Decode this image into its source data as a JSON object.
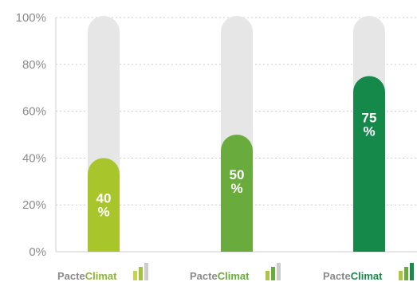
{
  "chart_data": {
    "type": "bar",
    "categories": [
      "PacteClimat",
      "PacteClimat",
      "PacteClimat"
    ],
    "values": [
      40,
      50,
      75
    ],
    "value_labels": [
      [
        "40",
        "%"
      ],
      [
        "50",
        "%"
      ],
      [
        "75",
        "%"
      ]
    ],
    "yticks": [
      "0%",
      "20%",
      "40%",
      "60%",
      "80%",
      "100%"
    ],
    "ylim": [
      0,
      100
    ],
    "grid": true,
    "bar_colors": [
      "#a8c62c",
      "#6aab3e",
      "#14894a"
    ],
    "track_color": "#e6e6e6",
    "grid_color": "#cccccc"
  },
  "logos": [
    {
      "part1": "Pacte",
      "part2": "Climat",
      "part2_color": "#8cb43a",
      "icon": "bar-chart-icon",
      "icon_colors": [
        "#c5d64c",
        "#a5c23f",
        "#cccccc"
      ]
    },
    {
      "part1": "Pacte",
      "part2": "Climat",
      "part2_color": "#6aab3e",
      "icon": "bar-chart-icon",
      "icon_colors": [
        "#a9c83e",
        "#6aab3e",
        "#cccccc"
      ]
    },
    {
      "part1": "Pacte",
      "part2": "Climat",
      "part2_color": "#1a8a4a",
      "icon": "bar-chart-icon",
      "icon_colors": [
        "#a9c83e",
        "#6aab3e",
        "#1a8a4a"
      ]
    }
  ]
}
